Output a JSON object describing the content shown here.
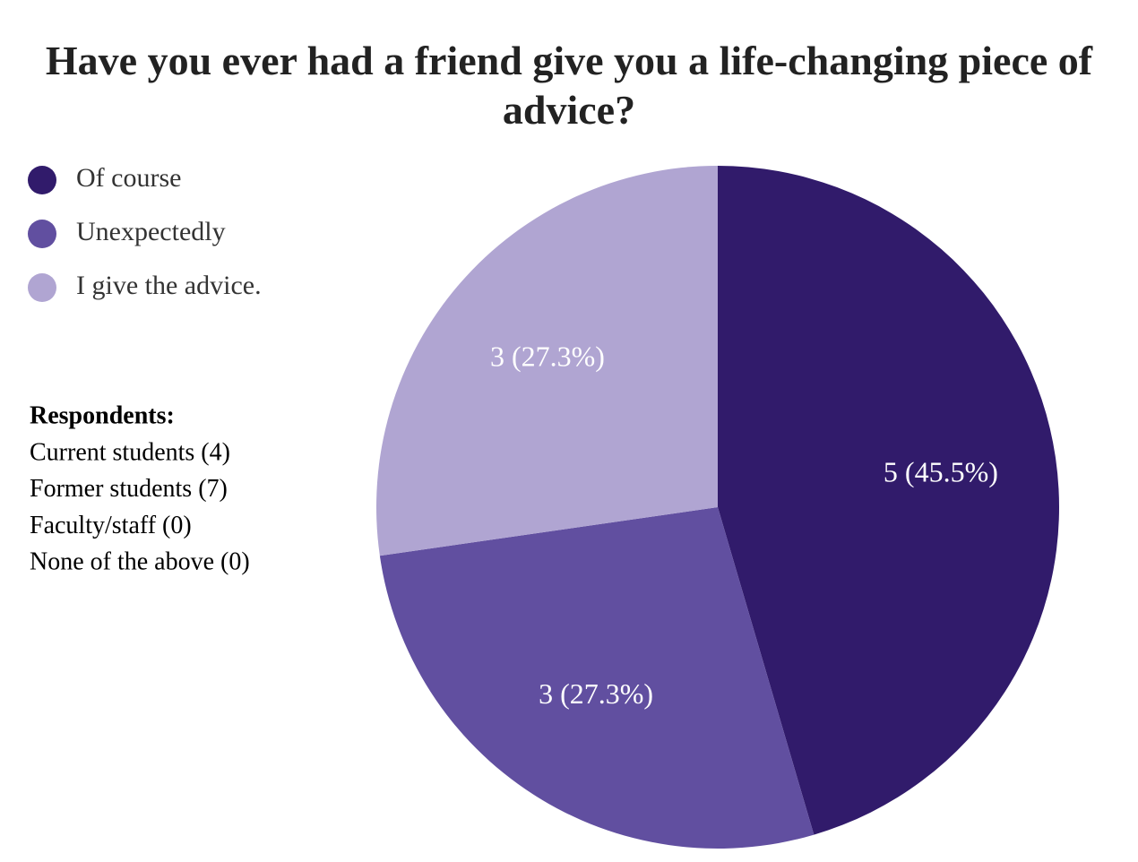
{
  "chart_data": {
    "type": "pie",
    "title": "Have you ever had a friend give you a life-changing piece of advice?",
    "categories": [
      "Of course",
      "Unexpectedly",
      "I give the advice."
    ],
    "values": [
      5,
      3,
      3
    ],
    "value_labels": [
      "5 (45.5%)",
      "3 (27.3%)",
      "3 (27.3%)"
    ],
    "colors": [
      "#311b6b",
      "#614fa0",
      "#b0a5d2"
    ],
    "legend": "top-left",
    "respondents": {
      "heading": "Respondents:",
      "lines": [
        "Current students (4)",
        "Former students (7)",
        "Faculty/staff (0)",
        "None of the above (0)"
      ]
    }
  }
}
